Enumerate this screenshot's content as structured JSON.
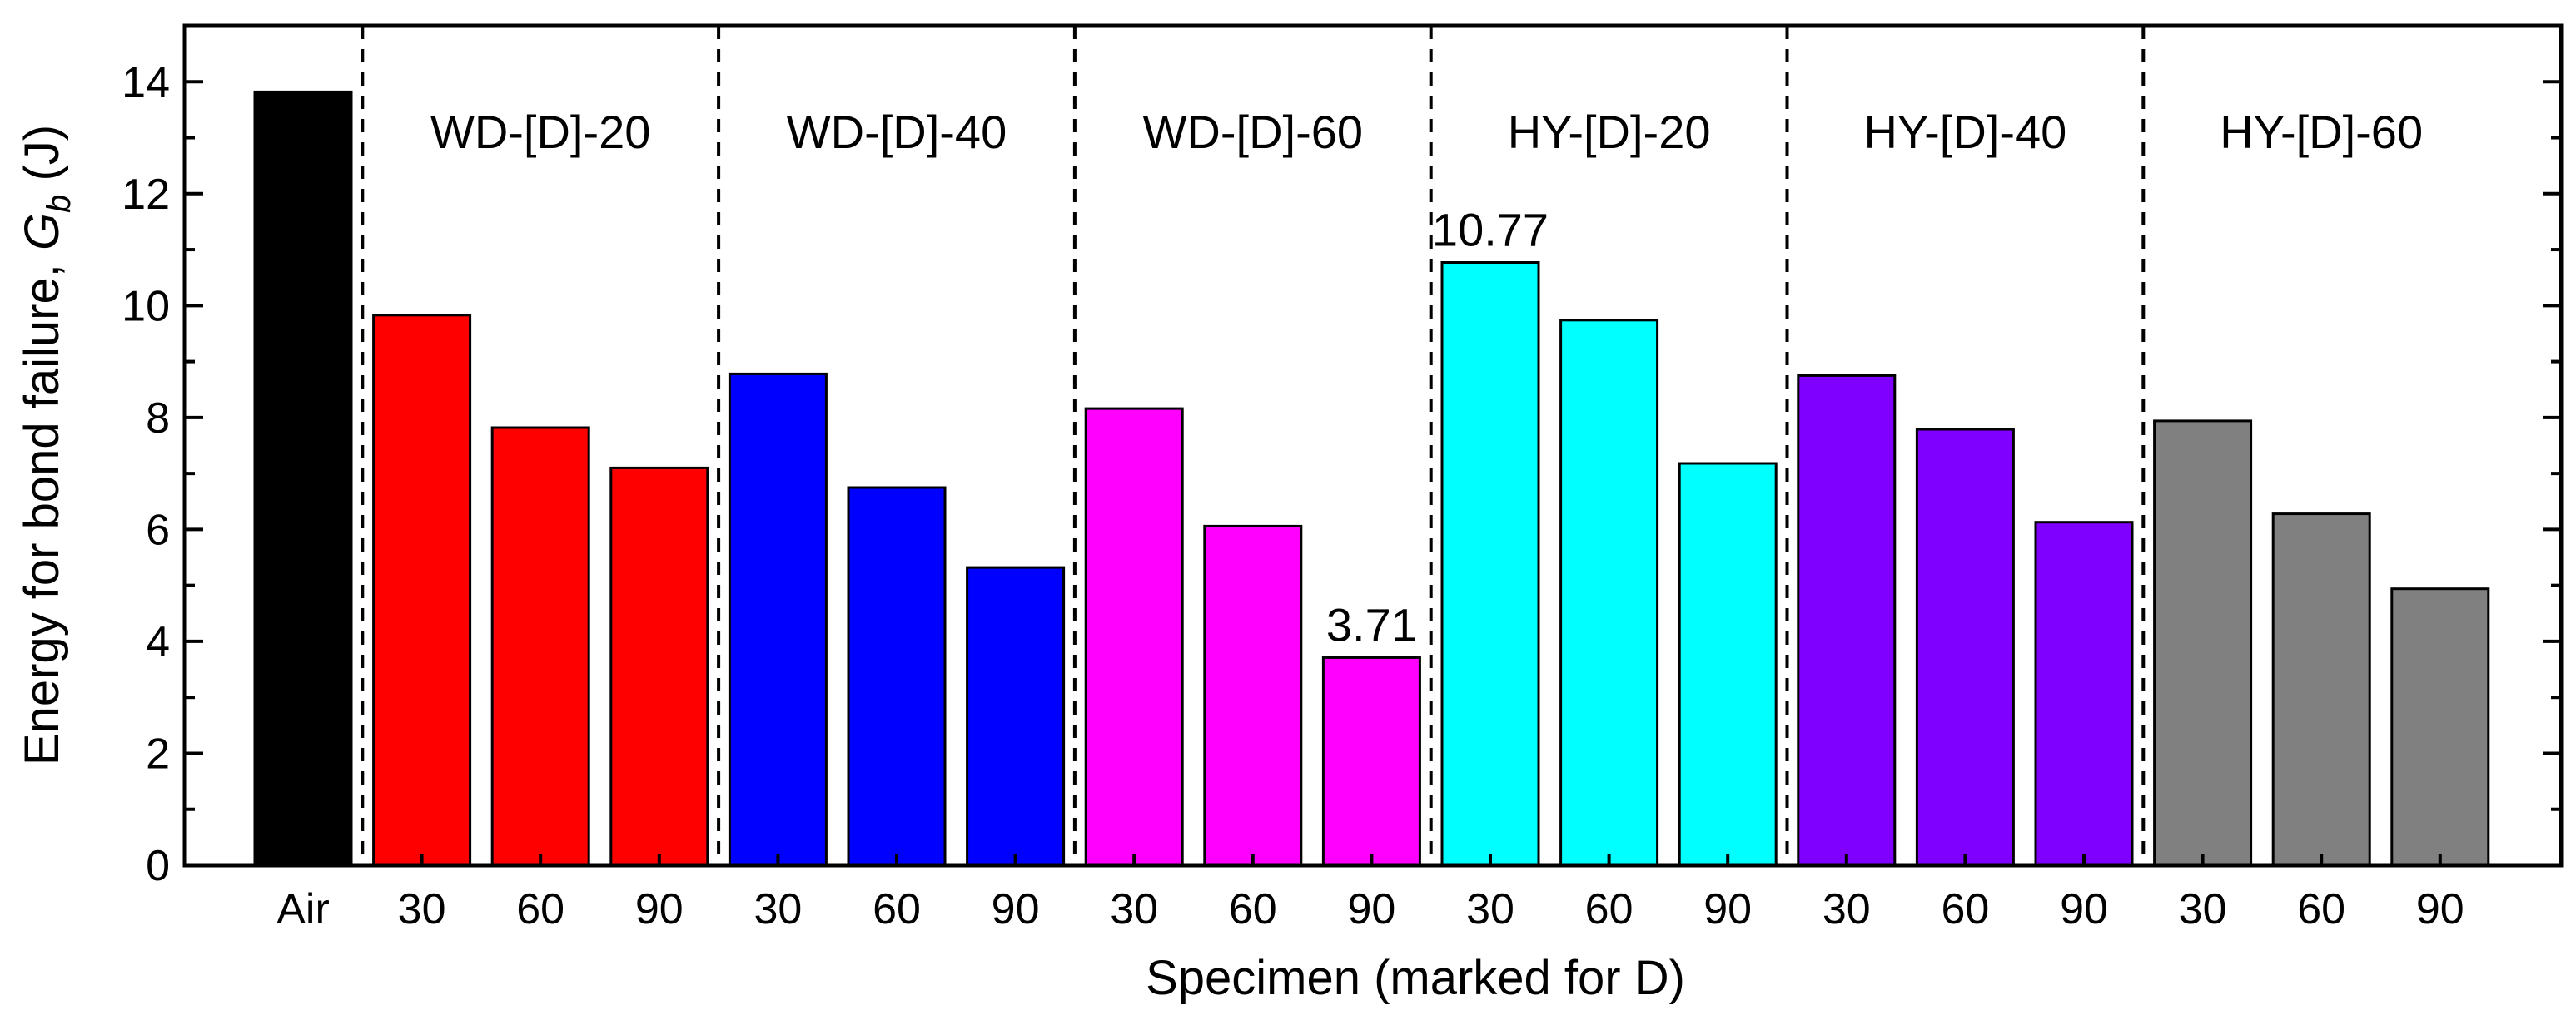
{
  "chart_data": {
    "type": "bar",
    "title": "",
    "xlabel": "Specimen (marked for D)",
    "ylabel": "Energy for bond failure, ",
    "ylabel_symbol": "G",
    "ylabel_subscript": "b",
    "ylabel_unit": " (J)",
    "ylim": [
      0,
      15
    ],
    "yticks": [
      0,
      2,
      4,
      6,
      8,
      10,
      12,
      14
    ],
    "ytick_labels": [
      "0",
      "2",
      "4",
      "6",
      "8",
      "10",
      "12",
      "14"
    ],
    "categories": [
      "Air",
      "30",
      "60",
      "90",
      "30",
      "60",
      "90",
      "30",
      "60",
      "90",
      "30",
      "60",
      "90",
      "30",
      "60",
      "90",
      "30",
      "60",
      "90"
    ],
    "values": [
      13.82,
      9.83,
      7.82,
      7.1,
      8.78,
      6.75,
      5.32,
      8.16,
      6.06,
      3.71,
      10.77,
      9.74,
      7.18,
      8.75,
      7.79,
      6.13,
      7.94,
      6.28,
      4.94
    ],
    "colors": [
      "#000000",
      "#ff0000",
      "#ff0000",
      "#ff0000",
      "#0000ff",
      "#0000ff",
      "#0000ff",
      "#ff00ff",
      "#ff00ff",
      "#ff00ff",
      "#00ffff",
      "#00ffff",
      "#00ffff",
      "#8000ff",
      "#8000ff",
      "#8000ff",
      "#808080",
      "#808080",
      "#808080"
    ],
    "groups": [
      {
        "name": "WD-[D]-20",
        "start": 1,
        "end": 3
      },
      {
        "name": "WD-[D]-40",
        "start": 4,
        "end": 6
      },
      {
        "name": "WD-[D]-60",
        "start": 7,
        "end": 9
      },
      {
        "name": "HY-[D]-20",
        "start": 10,
        "end": 12
      },
      {
        "name": "HY-[D]-40",
        "start": 13,
        "end": 15
      },
      {
        "name": "HY-[D]-60",
        "start": 16,
        "end": 18
      }
    ],
    "annotations": [
      {
        "index": 9,
        "text": "3.71"
      },
      {
        "index": 10,
        "text": "10.77"
      }
    ]
  }
}
